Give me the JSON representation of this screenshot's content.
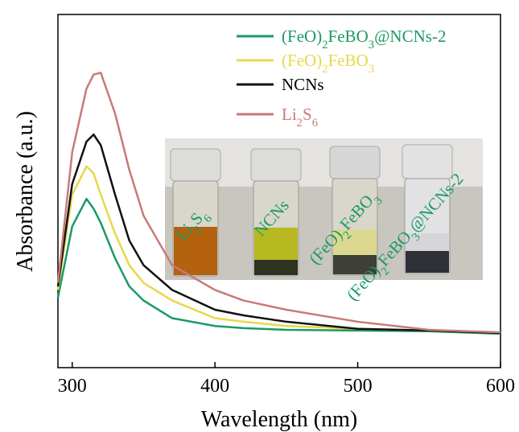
{
  "chart_data": {
    "type": "line",
    "xlabel": "Wavelength (nm)",
    "ylabel": "Absorbance (a.u.)",
    "x": [
      290,
      300,
      310,
      315,
      320,
      330,
      340,
      350,
      370,
      400,
      420,
      450,
      500,
      550,
      600
    ],
    "series": [
      {
        "name": "(FeO)2FeBO3@NCNs-2",
        "color": "#1a9a64",
        "values": [
          0.198,
          0.4,
          0.478,
          0.45,
          0.41,
          0.31,
          0.23,
          0.19,
          0.14,
          0.118,
          0.112,
          0.107,
          0.105,
          0.103,
          0.096
        ]
      },
      {
        "name": "(FeO)2FeBO3",
        "color": "#e8d84a",
        "values": [
          0.22,
          0.49,
          0.57,
          0.55,
          0.49,
          0.38,
          0.29,
          0.24,
          0.19,
          0.14,
          0.13,
          0.118,
          0.11,
          0.105,
          0.098
        ]
      },
      {
        "name": "NCNs",
        "color": "#111111",
        "values": [
          0.23,
          0.52,
          0.64,
          0.66,
          0.63,
          0.49,
          0.36,
          0.29,
          0.22,
          0.164,
          0.148,
          0.13,
          0.11,
          0.105,
          0.098
        ]
      },
      {
        "name": "Li2S6",
        "color": "#c87a78",
        "values": [
          0.24,
          0.61,
          0.79,
          0.83,
          0.835,
          0.72,
          0.56,
          0.43,
          0.29,
          0.22,
          0.19,
          0.164,
          0.13,
          0.107,
          0.1
        ]
      }
    ],
    "xlim": [
      290,
      600
    ],
    "xticks": [
      300,
      400,
      500,
      600
    ],
    "ylim": [
      0,
      1
    ],
    "legend": "upper right",
    "inset": {
      "labels": [
        "Li2S6",
        "NCNs",
        "(FeO)2FeBO3",
        "(FeO)2FeBO3@NCNs-2"
      ]
    }
  }
}
